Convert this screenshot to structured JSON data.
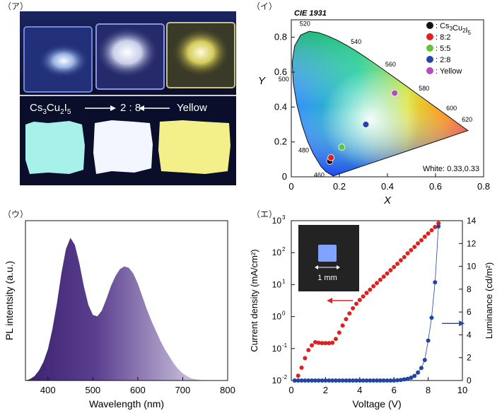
{
  "panel_labels": {
    "a": "（ア）",
    "i": "（イ）",
    "u": "（ウ）",
    "e": "（エ）"
  },
  "photo": {
    "caption_left_main": "Cs",
    "caption_left_sub1": "3",
    "caption_left_mid": "Cu",
    "caption_left_sub2": "2",
    "caption_left_end": "I",
    "caption_left_sub3": "5",
    "caption_middle": "2 : 8",
    "caption_right": "Yellow",
    "top_samples": [
      "#9fc8ff",
      "#ffffff",
      "#fff4a0"
    ],
    "bottom_samples": [
      "#a8f0ea",
      "#f4f6ff",
      "#f3f08a"
    ]
  },
  "chart_data": [
    {
      "id": "cie",
      "type": "scatter",
      "title": "CIE 1931",
      "xlabel": "X",
      "ylabel": "Y",
      "xlim": [
        0,
        0.8
      ],
      "ylim": [
        0,
        0.9
      ],
      "xticks": [
        "0",
        "0.2",
        "0.4",
        "0.6",
        "0.8"
      ],
      "yticks": [
        "0",
        "0.2",
        "0.4",
        "0.6",
        "0.8"
      ],
      "locus": [
        [
          0.1741,
          0.005
        ],
        [
          0.144,
          0.0297
        ],
        [
          0.1241,
          0.0578
        ],
        [
          0.0913,
          0.1327
        ],
        [
          0.0687,
          0.2007
        ],
        [
          0.0454,
          0.295
        ],
        [
          0.0235,
          0.4127
        ],
        [
          0.0082,
          0.5384
        ],
        [
          0.0039,
          0.6548
        ],
        [
          0.0139,
          0.7502
        ],
        [
          0.0389,
          0.812
        ],
        [
          0.0743,
          0.8338
        ],
        [
          0.1142,
          0.8262
        ],
        [
          0.1547,
          0.8059
        ],
        [
          0.1929,
          0.7816
        ],
        [
          0.2296,
          0.7543
        ],
        [
          0.2658,
          0.7243
        ],
        [
          0.3016,
          0.6923
        ],
        [
          0.3373,
          0.6589
        ],
        [
          0.3731,
          0.6245
        ],
        [
          0.4087,
          0.5896
        ],
        [
          0.4441,
          0.5547
        ],
        [
          0.4788,
          0.5202
        ],
        [
          0.5125,
          0.4866
        ],
        [
          0.5448,
          0.4544
        ],
        [
          0.5752,
          0.4242
        ],
        [
          0.6029,
          0.3965
        ],
        [
          0.627,
          0.3725
        ],
        [
          0.6482,
          0.3514
        ],
        [
          0.6658,
          0.334
        ],
        [
          0.6801,
          0.3197
        ],
        [
          0.6915,
          0.3083
        ],
        [
          0.7006,
          0.2993
        ],
        [
          0.7079,
          0.292
        ],
        [
          0.714,
          0.2859
        ],
        [
          0.7347,
          0.2653
        ]
      ],
      "wavelength_labels": [
        {
          "label": "460",
          "x": 0.144,
          "y": 0.0297
        },
        {
          "label": "480",
          "x": 0.0913,
          "y": 0.1327
        },
        {
          "label": "500",
          "x": 0.0082,
          "y": 0.5384
        },
        {
          "label": "520",
          "x": 0.0743,
          "y": 0.8338
        },
        {
          "label": "540",
          "x": 0.2296,
          "y": 0.7543
        },
        {
          "label": "560",
          "x": 0.3731,
          "y": 0.6245
        },
        {
          "label": "580",
          "x": 0.5125,
          "y": 0.4866
        },
        {
          "label": "600",
          "x": 0.627,
          "y": 0.3725
        },
        {
          "label": "620",
          "x": 0.6915,
          "y": 0.3083
        }
      ],
      "points": [
        {
          "name": "Cs3Cu2I5",
          "x": 0.16,
          "y": 0.09,
          "color": "#111111"
        },
        {
          "name": "8:2",
          "x": 0.165,
          "y": 0.11,
          "color": "#e02020"
        },
        {
          "name": "5:5",
          "x": 0.21,
          "y": 0.17,
          "color": "#5fc63a"
        },
        {
          "name": "2:8",
          "x": 0.31,
          "y": 0.3,
          "color": "#2545a8"
        },
        {
          "name": "Yellow",
          "x": 0.43,
          "y": 0.48,
          "color": "#b050b8"
        }
      ],
      "legend": {
        "placement": "top-right",
        "entries": [
          {
            "prefix": ": Cs",
            "sub1": "3",
            "mid": "Cu",
            "sub2": "2",
            "end": "I",
            "sub3": "5",
            "color": "#111111"
          },
          {
            "prefix": ": 8:2",
            "color": "#e02020"
          },
          {
            "prefix": ": 5:5",
            "color": "#5fc63a"
          },
          {
            "prefix": ": 2:8",
            "color": "#2545a8"
          },
          {
            "prefix": ": Yellow",
            "color": "#b050b8"
          }
        ]
      },
      "annotation": "White: 0.33,0.33"
    },
    {
      "id": "pl",
      "type": "area",
      "xlabel": "Wavelength (nm)",
      "ylabel": "PL intentsity (a.u.)",
      "xlim": [
        350,
        800
      ],
      "ylim": [
        0,
        1.12
      ],
      "xticks": [
        400,
        500,
        600,
        700,
        800
      ],
      "fill_colors": [
        "#3c2170",
        "#f2eef8"
      ],
      "x": [
        350,
        360,
        370,
        380,
        390,
        400,
        410,
        420,
        430,
        440,
        450,
        460,
        470,
        480,
        490,
        500,
        510,
        520,
        530,
        540,
        550,
        560,
        570,
        580,
        590,
        600,
        610,
        620,
        630,
        640,
        650,
        660,
        670,
        680,
        690,
        700,
        710,
        720,
        730,
        740,
        750,
        760,
        770,
        780,
        790,
        800
      ],
      "values": [
        0.0,
        0.01,
        0.03,
        0.07,
        0.13,
        0.22,
        0.36,
        0.54,
        0.75,
        0.92,
        1.0,
        0.95,
        0.82,
        0.66,
        0.53,
        0.46,
        0.45,
        0.49,
        0.57,
        0.66,
        0.73,
        0.78,
        0.8,
        0.79,
        0.75,
        0.68,
        0.59,
        0.5,
        0.42,
        0.35,
        0.28,
        0.22,
        0.17,
        0.12,
        0.08,
        0.05,
        0.03,
        0.015,
        0.008,
        0.004,
        0.0,
        0.0,
        0.0,
        0.0,
        0.0,
        0.0
      ]
    },
    {
      "id": "jvl",
      "type": "scatter",
      "xlabel": "Voltage (V)",
      "ylabel_left": "Current density  (mA/cm²)",
      "ylabel_right": "Luminance  (cd/m²)",
      "xlim": [
        0,
        10
      ],
      "ylim_left_log10": [
        -2,
        3
      ],
      "ylim_right": [
        0,
        14
      ],
      "xticks": [
        0,
        2,
        4,
        6,
        8,
        10
      ],
      "yticks_left_exp": [
        -2,
        -1,
        0,
        1,
        2,
        3
      ],
      "yticks_right": [
        0,
        2,
        4,
        6,
        8,
        10,
        12,
        14
      ],
      "current_color": "#e02020",
      "luminance_color": "#2045a5",
      "current_density": {
        "x": [
          0.2,
          0.4,
          0.6,
          0.8,
          1.0,
          1.2,
          1.4,
          1.6,
          1.8,
          2.0,
          2.2,
          2.4,
          2.6,
          2.8,
          3.0,
          3.2,
          3.4,
          3.6,
          3.8,
          4.0,
          4.2,
          4.4,
          4.6,
          4.8,
          5.0,
          5.2,
          5.4,
          5.6,
          5.8,
          6.0,
          6.2,
          6.4,
          6.6,
          6.8,
          7.0,
          7.2,
          7.4,
          7.6,
          7.8,
          8.0,
          8.2,
          8.4,
          8.6
        ],
        "log10_values": [
          -2.0,
          -1.85,
          -1.6,
          -1.3,
          -1.05,
          -0.9,
          -0.8,
          -0.82,
          -0.83,
          -0.83,
          -0.83,
          -0.82,
          -0.7,
          -0.5,
          -0.28,
          -0.08,
          0.1,
          0.26,
          0.4,
          0.52,
          0.63,
          0.74,
          0.84,
          0.95,
          1.05,
          1.15,
          1.25,
          1.35,
          1.45,
          1.55,
          1.65,
          1.76,
          1.86,
          1.98,
          2.08,
          2.18,
          2.29,
          2.39,
          2.5,
          2.6,
          2.7,
          2.8,
          2.92
        ]
      },
      "luminance": {
        "x": [
          0.2,
          0.4,
          0.6,
          0.8,
          1.0,
          1.2,
          1.4,
          1.6,
          1.8,
          2.0,
          2.2,
          2.4,
          2.6,
          2.8,
          3.0,
          3.2,
          3.4,
          3.6,
          3.8,
          4.0,
          4.2,
          4.4,
          4.6,
          4.8,
          5.0,
          5.2,
          5.4,
          5.6,
          5.8,
          6.0,
          6.2,
          6.4,
          6.6,
          6.8,
          7.0,
          7.2,
          7.4,
          7.6,
          7.8,
          8.0,
          8.2,
          8.4,
          8.6
        ],
        "values": [
          0,
          0,
          0,
          0,
          0,
          0,
          0,
          0,
          0,
          0,
          0,
          0,
          0,
          0,
          0,
          0,
          0,
          0,
          0,
          0,
          0,
          0,
          0,
          0,
          0,
          0,
          0,
          0,
          0,
          0,
          0.02,
          0.05,
          0.1,
          0.15,
          0.25,
          0.4,
          0.7,
          1.1,
          1.8,
          3.5,
          5.5,
          8.6,
          13.5
        ]
      },
      "inset_label": "1 mm"
    }
  ]
}
